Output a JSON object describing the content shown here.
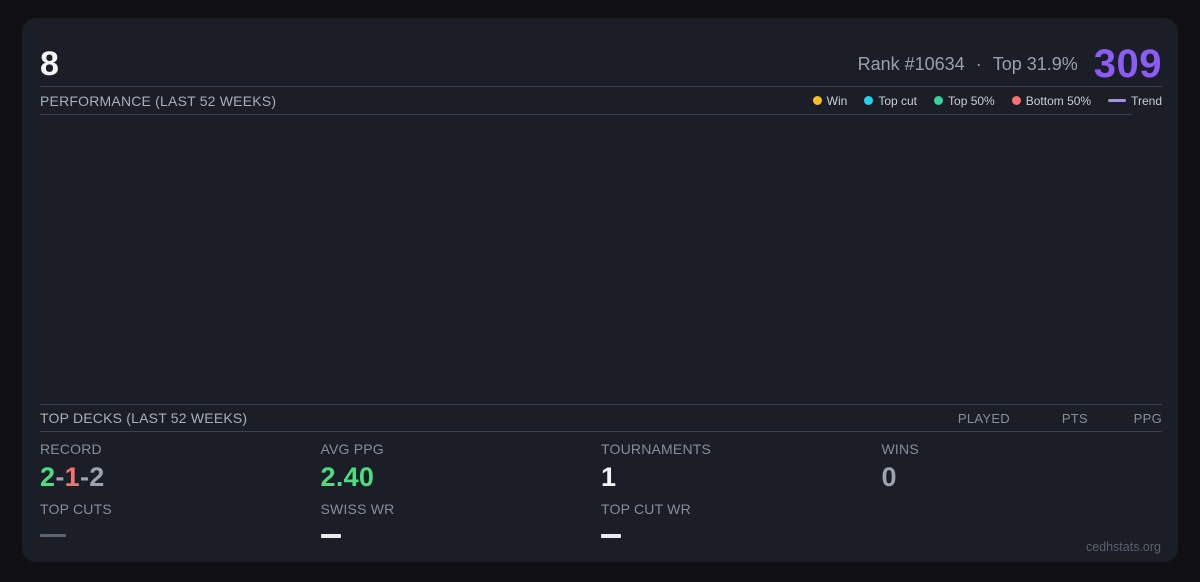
{
  "header": {
    "title_number": "8",
    "rank": "Rank #10634",
    "dot_separator": "·",
    "top_percent": "Top 31.9%",
    "points": "309",
    "points_color": "#8b5cf6"
  },
  "performance": {
    "title": "PERFORMANCE (LAST 52 WEEKS)",
    "legend": [
      {
        "label": "Win",
        "color": "#fbbf24",
        "swatch": "dot"
      },
      {
        "label": "Top cut",
        "color": "#22d3ee",
        "swatch": "dot"
      },
      {
        "label": "Top 50%",
        "color": "#34d399",
        "swatch": "dot"
      },
      {
        "label": "Bottom 50%",
        "color": "#f87171",
        "swatch": "dot"
      },
      {
        "label": "Trend",
        "color": "#a78bfa",
        "swatch": "line"
      }
    ],
    "chart": {
      "empty": true
    }
  },
  "top_decks": {
    "title": "TOP DECKS (LAST 52 WEEKS)",
    "columns": [
      "PLAYED",
      "PTS",
      "PPG"
    ],
    "rows": []
  },
  "stats": {
    "record": {
      "label": "RECORD",
      "wins": "2",
      "losses": "1",
      "draws": "2",
      "separator": "-",
      "wins_color": "#4ade80",
      "losses_color": "#f87171",
      "draws_color": "#9ca3af",
      "separator_color": "#9ca3af"
    },
    "avg_ppg": {
      "label": "AVG PPG",
      "value": "2.40",
      "color": "#4ade80"
    },
    "tournaments": {
      "label": "TOURNAMENTS",
      "value": "1",
      "color": "#f4f5f7"
    },
    "wins": {
      "label": "WINS",
      "value": "0",
      "color": "#9ca3af"
    },
    "top_cuts": {
      "label": "TOP CUTS",
      "value": "—",
      "muted": true
    },
    "swiss_wr": {
      "label": "SWISS WR",
      "value": "—",
      "muted": false
    },
    "top_cut_wr": {
      "label": "TOP CUT WR",
      "value": "—",
      "muted": false
    }
  },
  "footer": {
    "watermark": "cedhstats.org"
  }
}
